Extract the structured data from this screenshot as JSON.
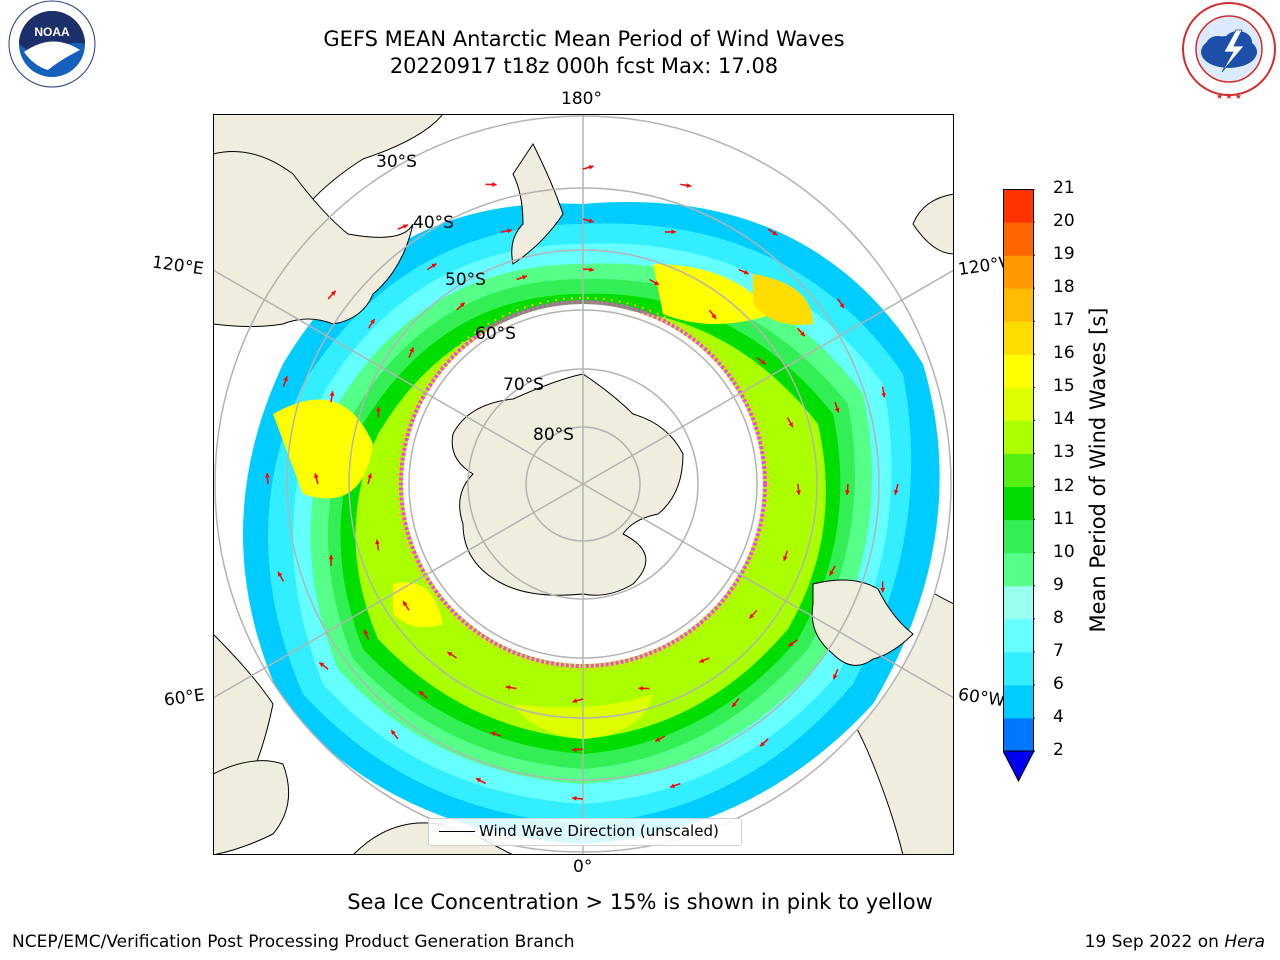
{
  "header": {
    "title_line1": "GEFS MEAN Antarctic Mean Period of Wind Waves",
    "title_line2": "20220917 t18z 000h fcst   Max: 17.08"
  },
  "logos": {
    "left": {
      "icon": "noaa-logo-icon",
      "text": "NOAA",
      "ring_text": "NATIONAL OCEANIC AND ATMOSPHERIC ADMINISTRATION · U.S. DEPARTMENT OF COMMERCE"
    },
    "right": {
      "icon": "national-weather-service-logo-icon",
      "ring_text": "NATIONAL WEATHER SERVICE"
    }
  },
  "map": {
    "projection": "south-polar-stereographic",
    "longitude_labels": {
      "top": "180°",
      "bottom": "0°",
      "upper_left": "120°E",
      "lower_left": "60°E",
      "upper_right": "120°W",
      "lower_right": "60°W"
    },
    "latitude_labels": [
      "30°S",
      "40°S",
      "50°S",
      "60°S",
      "70°S",
      "80°S"
    ],
    "legend": {
      "label": "Wind Wave Direction (unscaled)"
    },
    "colors": {
      "land": "#efedde",
      "coastline": "#000000",
      "gridline": "#b3b3b3",
      "arrow": "#ff0000",
      "ice_edge_pink": "#ff44dd",
      "ice_edge_yellow": "#ffbb22"
    }
  },
  "colorbar": {
    "label": "Mean Period of Wind Waves [s]",
    "ticks": [
      "2",
      "4",
      "6",
      "7",
      "8",
      "9",
      "10",
      "11",
      "12",
      "13",
      "14",
      "15",
      "16",
      "17",
      "18",
      "19",
      "20",
      "21"
    ],
    "bin_colors": [
      "#0077ff",
      "#00ccff",
      "#33eeff",
      "#66ffff",
      "#99ffee",
      "#55ff88",
      "#33ee55",
      "#00dd00",
      "#55ee11",
      "#aaff00",
      "#ddff00",
      "#ffff00",
      "#ffdd00",
      "#ffbb00",
      "#ff9900",
      "#ff6600",
      "#ff3300"
    ],
    "under_color": "#0000ee"
  },
  "subtitle": "Sea Ice Concentration > 15% is shown in pink to yellow",
  "footer": {
    "left": "NCEP/EMC/Verification Post Processing Product Generation Branch",
    "right_date": "19 Sep 2022 on",
    "right_host": "Hera"
  }
}
